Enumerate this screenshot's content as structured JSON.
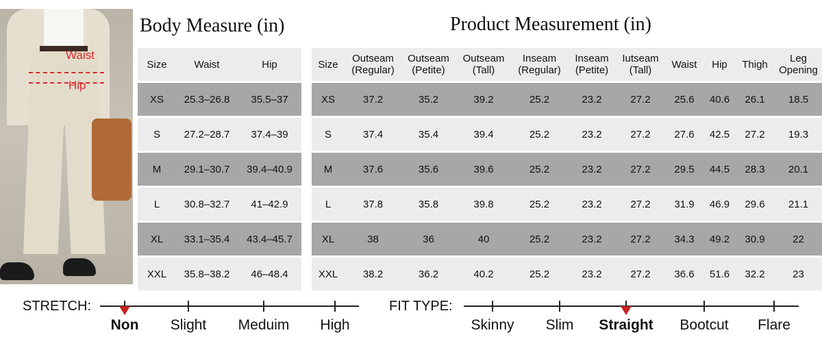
{
  "photo": {
    "waist_label": "Waist",
    "hip_label": "Hip"
  },
  "body_measure": {
    "title": "Body Measure (in)",
    "headers": [
      "Size",
      "Waist",
      "Hip"
    ],
    "rows": [
      [
        "XS",
        "25.3–26.8",
        "35.5–37"
      ],
      [
        "S",
        "27.2–28.7",
        "37.4–39"
      ],
      [
        "M",
        "29.1–30.7",
        "39.4–40.9"
      ],
      [
        "L",
        "30.8–32.7",
        "41–42.9"
      ],
      [
        "XL",
        "33.1–35.4",
        "43.4–45.7"
      ],
      [
        "XXL",
        "35.8–38.2",
        "46–48.4"
      ]
    ]
  },
  "product_measurement": {
    "title": "Product Measurement (in)",
    "headers": [
      "Size",
      [
        "Outseam",
        "(Regular)"
      ],
      [
        "Outseam",
        "(Petite)"
      ],
      [
        "Outseam",
        "(Tall)"
      ],
      [
        "Inseam",
        "(Regular)"
      ],
      [
        "Inseam",
        "(Petite)"
      ],
      [
        "Iutseam",
        "(Tall)"
      ],
      "Waist",
      "Hip",
      "Thigh",
      [
        "Leg",
        "Opening"
      ]
    ],
    "rows": [
      [
        "XS",
        "37.2",
        "35.2",
        "39.2",
        "25.2",
        "23.2",
        "27.2",
        "25.6",
        "40.6",
        "26.1",
        "18.5"
      ],
      [
        "S",
        "37.4",
        "35.4",
        "39.4",
        "25.2",
        "23.2",
        "27.2",
        "27.6",
        "42.5",
        "27.2",
        "19.3"
      ],
      [
        "M",
        "37.6",
        "35.6",
        "39.6",
        "25.2",
        "23.2",
        "27.2",
        "29.5",
        "44.5",
        "28.3",
        "20.1"
      ],
      [
        "L",
        "37.8",
        "35.8",
        "39.8",
        "25.2",
        "23.2",
        "27.2",
        "31.9",
        "46.9",
        "29.6",
        "21.1"
      ],
      [
        "XL",
        "38",
        "36",
        "40",
        "25.2",
        "23.2",
        "27.2",
        "34.3",
        "49.2",
        "30.9",
        "22"
      ],
      [
        "XXL",
        "38.2",
        "36.2",
        "40.2",
        "25.2",
        "23.2",
        "27.2",
        "36.6",
        "51.6",
        "32.2",
        "23"
      ]
    ]
  },
  "stretch": {
    "label": "STRETCH:",
    "options": [
      "Non",
      "Slight",
      "Meduim",
      "High"
    ],
    "selected": "Non"
  },
  "fit_type": {
    "label": "FIT TYPE:",
    "options": [
      "Skinny",
      "Slim",
      "Straight",
      "Bootcut",
      "Flare"
    ],
    "selected": "Straight"
  },
  "colors": {
    "accent_red": "#c8201f",
    "row_dark": "#a7a7a7",
    "row_light": "#ececec"
  }
}
